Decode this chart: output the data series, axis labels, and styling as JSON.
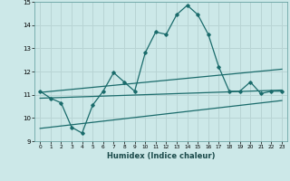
{
  "title": "",
  "xlabel": "Humidex (Indice chaleur)",
  "xlim": [
    -0.5,
    23.5
  ],
  "ylim": [
    9,
    15
  ],
  "yticks": [
    9,
    10,
    11,
    12,
    13,
    14,
    15
  ],
  "xticks": [
    0,
    1,
    2,
    3,
    4,
    5,
    6,
    7,
    8,
    9,
    10,
    11,
    12,
    13,
    14,
    15,
    16,
    17,
    18,
    19,
    20,
    21,
    22,
    23
  ],
  "bg_color": "#cce8e8",
  "line_color": "#1a6b6b",
  "grid_color": "#b8d4d4",
  "main_line_x": [
    0,
    1,
    2,
    3,
    4,
    5,
    6,
    7,
    8,
    9,
    10,
    11,
    12,
    13,
    14,
    15,
    16,
    17,
    18,
    19,
    20,
    21,
    22,
    23
  ],
  "main_line_y": [
    11.15,
    10.85,
    10.65,
    9.6,
    9.35,
    10.55,
    11.15,
    11.95,
    11.55,
    11.15,
    12.8,
    13.7,
    13.6,
    14.45,
    14.85,
    14.45,
    13.6,
    12.2,
    11.15,
    11.15,
    11.55,
    11.05,
    11.15,
    11.15
  ],
  "upper_line_x": [
    0,
    23
  ],
  "upper_line_y": [
    11.1,
    12.1
  ],
  "middle_line_x": [
    0,
    23
  ],
  "middle_line_y": [
    10.85,
    11.2
  ],
  "lower_line_x": [
    0,
    23
  ],
  "lower_line_y": [
    9.55,
    10.75
  ]
}
